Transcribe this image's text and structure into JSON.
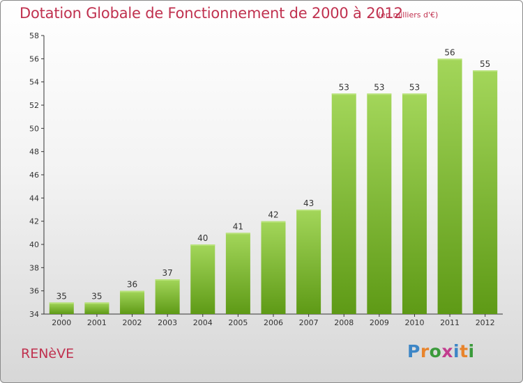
{
  "title": "Dotation Globale de Fonctionnement de 2000 à 2012",
  "subtitle": "(en milliers d'€)",
  "commune": "RENèVE",
  "brand": {
    "letters": [
      "P",
      "r",
      "o",
      "x",
      "i",
      "t",
      "i"
    ],
    "colors": [
      "#3d86c6",
      "#e8842c",
      "#3a9a3a",
      "#c23c8e",
      "#3d86c6",
      "#e8842c",
      "#3a9a3a"
    ]
  },
  "chart_data": {
    "type": "bar",
    "title": "Dotation Globale de Fonctionnement de 2000 à 2012",
    "subtitle": "(en milliers d'€)",
    "categories": [
      "2000",
      "2001",
      "2002",
      "2003",
      "2004",
      "2005",
      "2006",
      "2007",
      "2008",
      "2009",
      "2010",
      "2011",
      "2012"
    ],
    "values": [
      35,
      35,
      36,
      37,
      40,
      41,
      42,
      43,
      53,
      53,
      53,
      56,
      55
    ],
    "ylim": [
      34,
      58
    ],
    "yticks": [
      34,
      36,
      38,
      40,
      42,
      44,
      46,
      48,
      50,
      52,
      54,
      56,
      58
    ],
    "grid": false,
    "bar_color_top": "#a3d65a",
    "bar_color_bottom": "#5e9a16"
  }
}
